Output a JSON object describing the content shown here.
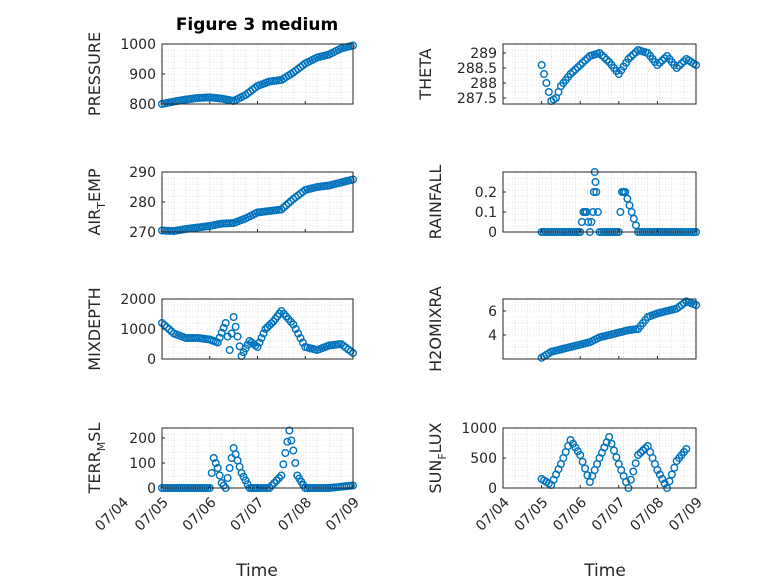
{
  "figure": {
    "title": "Figure 3 medium",
    "xlabel": "Time"
  },
  "colors": {
    "marker": "#0072BD",
    "axes": "#262626",
    "grid": "#d8d8d8",
    "background": "#ffffff"
  },
  "chart_data": [
    {
      "type": "scatter",
      "ylabel": "PRESSURE",
      "ylim": [
        800,
        1000
      ],
      "yticks": [
        "800",
        "900",
        "1000"
      ],
      "ytick_values": [
        800,
        900,
        1000
      ],
      "xlim": [
        "07/05",
        "07/09"
      ],
      "grid": true,
      "x": [
        "07/05",
        "07/05 06:00",
        "07/05 12:00",
        "07/05 18:00",
        "07/06",
        "07/06 06:00",
        "07/06 12:00",
        "07/06 18:00",
        "07/07",
        "07/07 06:00",
        "07/07 12:00",
        "07/07 18:00",
        "07/08",
        "07/08 06:00",
        "07/08 12:00",
        "07/08 18:00",
        "07/09"
      ],
      "y": [
        800,
        808,
        815,
        820,
        822,
        818,
        810,
        830,
        860,
        875,
        880,
        905,
        935,
        955,
        965,
        985,
        995
      ]
    },
    {
      "type": "scatter",
      "ylabel": "THETA",
      "ylim": [
        287.3,
        289.3
      ],
      "yticks": [
        "287.5",
        "288",
        "288.5",
        "289"
      ],
      "ytick_values": [
        287.5,
        288,
        288.5,
        289
      ],
      "xlim": [
        "07/05",
        "07/09"
      ],
      "grid": true,
      "x": [
        "07/05",
        "07/05 03:00",
        "07/05 06:00",
        "07/05 09:00",
        "07/05 12:00",
        "07/05 18:00",
        "07/06",
        "07/06 06:00",
        "07/06 12:00",
        "07/06 18:00",
        "07/07",
        "07/07 06:00",
        "07/07 12:00",
        "07/07 18:00",
        "07/08",
        "07/08 06:00",
        "07/08 12:00",
        "07/08 18:00",
        "07/09"
      ],
      "y": [
        288.6,
        288.0,
        287.4,
        287.5,
        287.9,
        288.3,
        288.6,
        288.9,
        289.0,
        288.7,
        288.3,
        288.8,
        289.1,
        289.0,
        288.6,
        288.9,
        288.5,
        288.8,
        288.6
      ]
    },
    {
      "type": "scatter",
      "ylabel": "AIR_TEMP",
      "ylim": [
        270,
        290
      ],
      "yticks": [
        "270",
        "280",
        "290"
      ],
      "ytick_values": [
        270,
        280,
        290
      ],
      "xlim": [
        "07/05",
        "07/09"
      ],
      "grid": true,
      "x": [
        "07/05",
        "07/05 06:00",
        "07/05 12:00",
        "07/05 18:00",
        "07/06",
        "07/06 06:00",
        "07/06 12:00",
        "07/06 18:00",
        "07/07",
        "07/07 06:00",
        "07/07 12:00",
        "07/07 18:00",
        "07/08",
        "07/08 06:00",
        "07/08 12:00",
        "07/08 18:00",
        "07/09"
      ],
      "y": [
        270.5,
        270.3,
        271,
        271.5,
        272,
        272.8,
        273,
        274.5,
        276.5,
        277,
        277.5,
        281,
        284,
        285,
        285.5,
        286.5,
        287.5
      ]
    },
    {
      "type": "scatter",
      "ylabel": "RAINFALL",
      "ylim": [
        0,
        0.3
      ],
      "yticks": [
        "0",
        "0.1",
        "0.2"
      ],
      "ytick_values": [
        0,
        0.1,
        0.2
      ],
      "xlim": [
        "07/05",
        "07/09"
      ],
      "grid": true,
      "x": [
        "07/05",
        "07/05 12:00",
        "07/06",
        "07/06 02:00",
        "07/06 04:00",
        "07/06 06:00",
        "07/06 08:00",
        "07/06 09:00",
        "07/06 10:00",
        "07/06 12:00",
        "07/07",
        "07/07 02:00",
        "07/07 04:00",
        "07/07 12:00",
        "07/08",
        "07/08 12:00",
        "07/09"
      ],
      "y": [
        0,
        0,
        0,
        0.1,
        0.1,
        0,
        0.1,
        0.3,
        0.2,
        0,
        0,
        0.2,
        0.2,
        0,
        0,
        0,
        0
      ]
    },
    {
      "type": "scatter",
      "ylabel": "MIXDEPTH",
      "ylim": [
        0,
        2000
      ],
      "yticks": [
        "0",
        "1000",
        "2000"
      ],
      "ytick_values": [
        0,
        1000,
        2000
      ],
      "xlim": [
        "07/05",
        "07/09"
      ],
      "grid": true,
      "x": [
        "07/05",
        "07/05 06:00",
        "07/05 12:00",
        "07/05 18:00",
        "07/06",
        "07/06 04:00",
        "07/06 08:00",
        "07/06 10:00",
        "07/06 12:00",
        "07/06 16:00",
        "07/06 20:00",
        "07/07",
        "07/07 04:00",
        "07/07 08:00",
        "07/07 12:00",
        "07/07 18:00",
        "07/08",
        "07/08 06:00",
        "07/08 12:00",
        "07/08 18:00",
        "07/09"
      ],
      "y": [
        1200,
        850,
        700,
        700,
        650,
        550,
        1200,
        300,
        1400,
        100,
        600,
        400,
        1000,
        1250,
        1600,
        1150,
        400,
        300,
        450,
        500,
        200
      ]
    },
    {
      "type": "scatter",
      "ylabel": "H2OMIXRA",
      "ylim": [
        2,
        7
      ],
      "yticks": [
        "4",
        "6"
      ],
      "ytick_values": [
        4,
        6
      ],
      "xlim": [
        "07/05",
        "07/09"
      ],
      "grid": true,
      "x": [
        "07/05",
        "07/05 06:00",
        "07/05 12:00",
        "07/05 18:00",
        "07/06",
        "07/06 06:00",
        "07/06 12:00",
        "07/06 18:00",
        "07/07",
        "07/07 06:00",
        "07/07 12:00",
        "07/07 18:00",
        "07/08",
        "07/08 06:00",
        "07/08 12:00",
        "07/08 18:00",
        "07/09"
      ],
      "y": [
        2.1,
        2.6,
        2.8,
        3.0,
        3.2,
        3.4,
        3.8,
        4.0,
        4.2,
        4.4,
        4.5,
        5.5,
        5.8,
        6.0,
        6.2,
        6.8,
        6.5
      ]
    },
    {
      "type": "scatter",
      "ylabel": "TERR_MSL",
      "ylim": [
        0,
        240
      ],
      "yticks": [
        "0",
        "100",
        "200"
      ],
      "ytick_values": [
        0,
        100,
        200
      ],
      "xlim": [
        "07/05",
        "07/09"
      ],
      "grid": true,
      "x": [
        "07/05",
        "07/05 12:00",
        "07/06",
        "07/06 02:00",
        "07/06 04:00",
        "07/06 06:00",
        "07/06 08:00",
        "07/06 12:00",
        "07/06 16:00",
        "07/06 20:00",
        "07/07",
        "07/07 06:00",
        "07/07 12:00",
        "07/07 16:00",
        "07/07 18:00",
        "07/07 20:00",
        "07/08",
        "07/08 12:00",
        "07/09"
      ],
      "y": [
        0,
        0,
        0,
        120,
        80,
        20,
        0,
        160,
        60,
        0,
        0,
        0,
        50,
        230,
        150,
        50,
        0,
        0,
        10
      ]
    },
    {
      "type": "scatter",
      "ylabel": "SUN_FLUX",
      "ylim": [
        0,
        1000
      ],
      "yticks": [
        "0",
        "500",
        "1000"
      ],
      "ytick_values": [
        0,
        500,
        1000
      ],
      "xlim": [
        "07/04",
        "07/09"
      ],
      "grid": true,
      "x": [
        "07/05",
        "07/05 06:00",
        "07/05 12:00",
        "07/05 18:00",
        "07/06",
        "07/06 06:00",
        "07/06 12:00",
        "07/06 18:00",
        "07/07",
        "07/07 06:00",
        "07/07 12:00",
        "07/07 18:00",
        "07/08",
        "07/08 06:00",
        "07/08 12:00",
        "07/08 18:00"
      ],
      "y": [
        150,
        50,
        400,
        800,
        550,
        100,
        500,
        850,
        400,
        0,
        550,
        700,
        300,
        0,
        450,
        650
      ]
    }
  ],
  "xaxis": {
    "ticks_left": [
      "07/04",
      "07/05",
      "07/06",
      "07/07",
      "07/08",
      "07/09"
    ],
    "ticks_right": [
      "07/04",
      "07/05",
      "07/06",
      "07/07",
      "07/08",
      "07/09"
    ]
  }
}
